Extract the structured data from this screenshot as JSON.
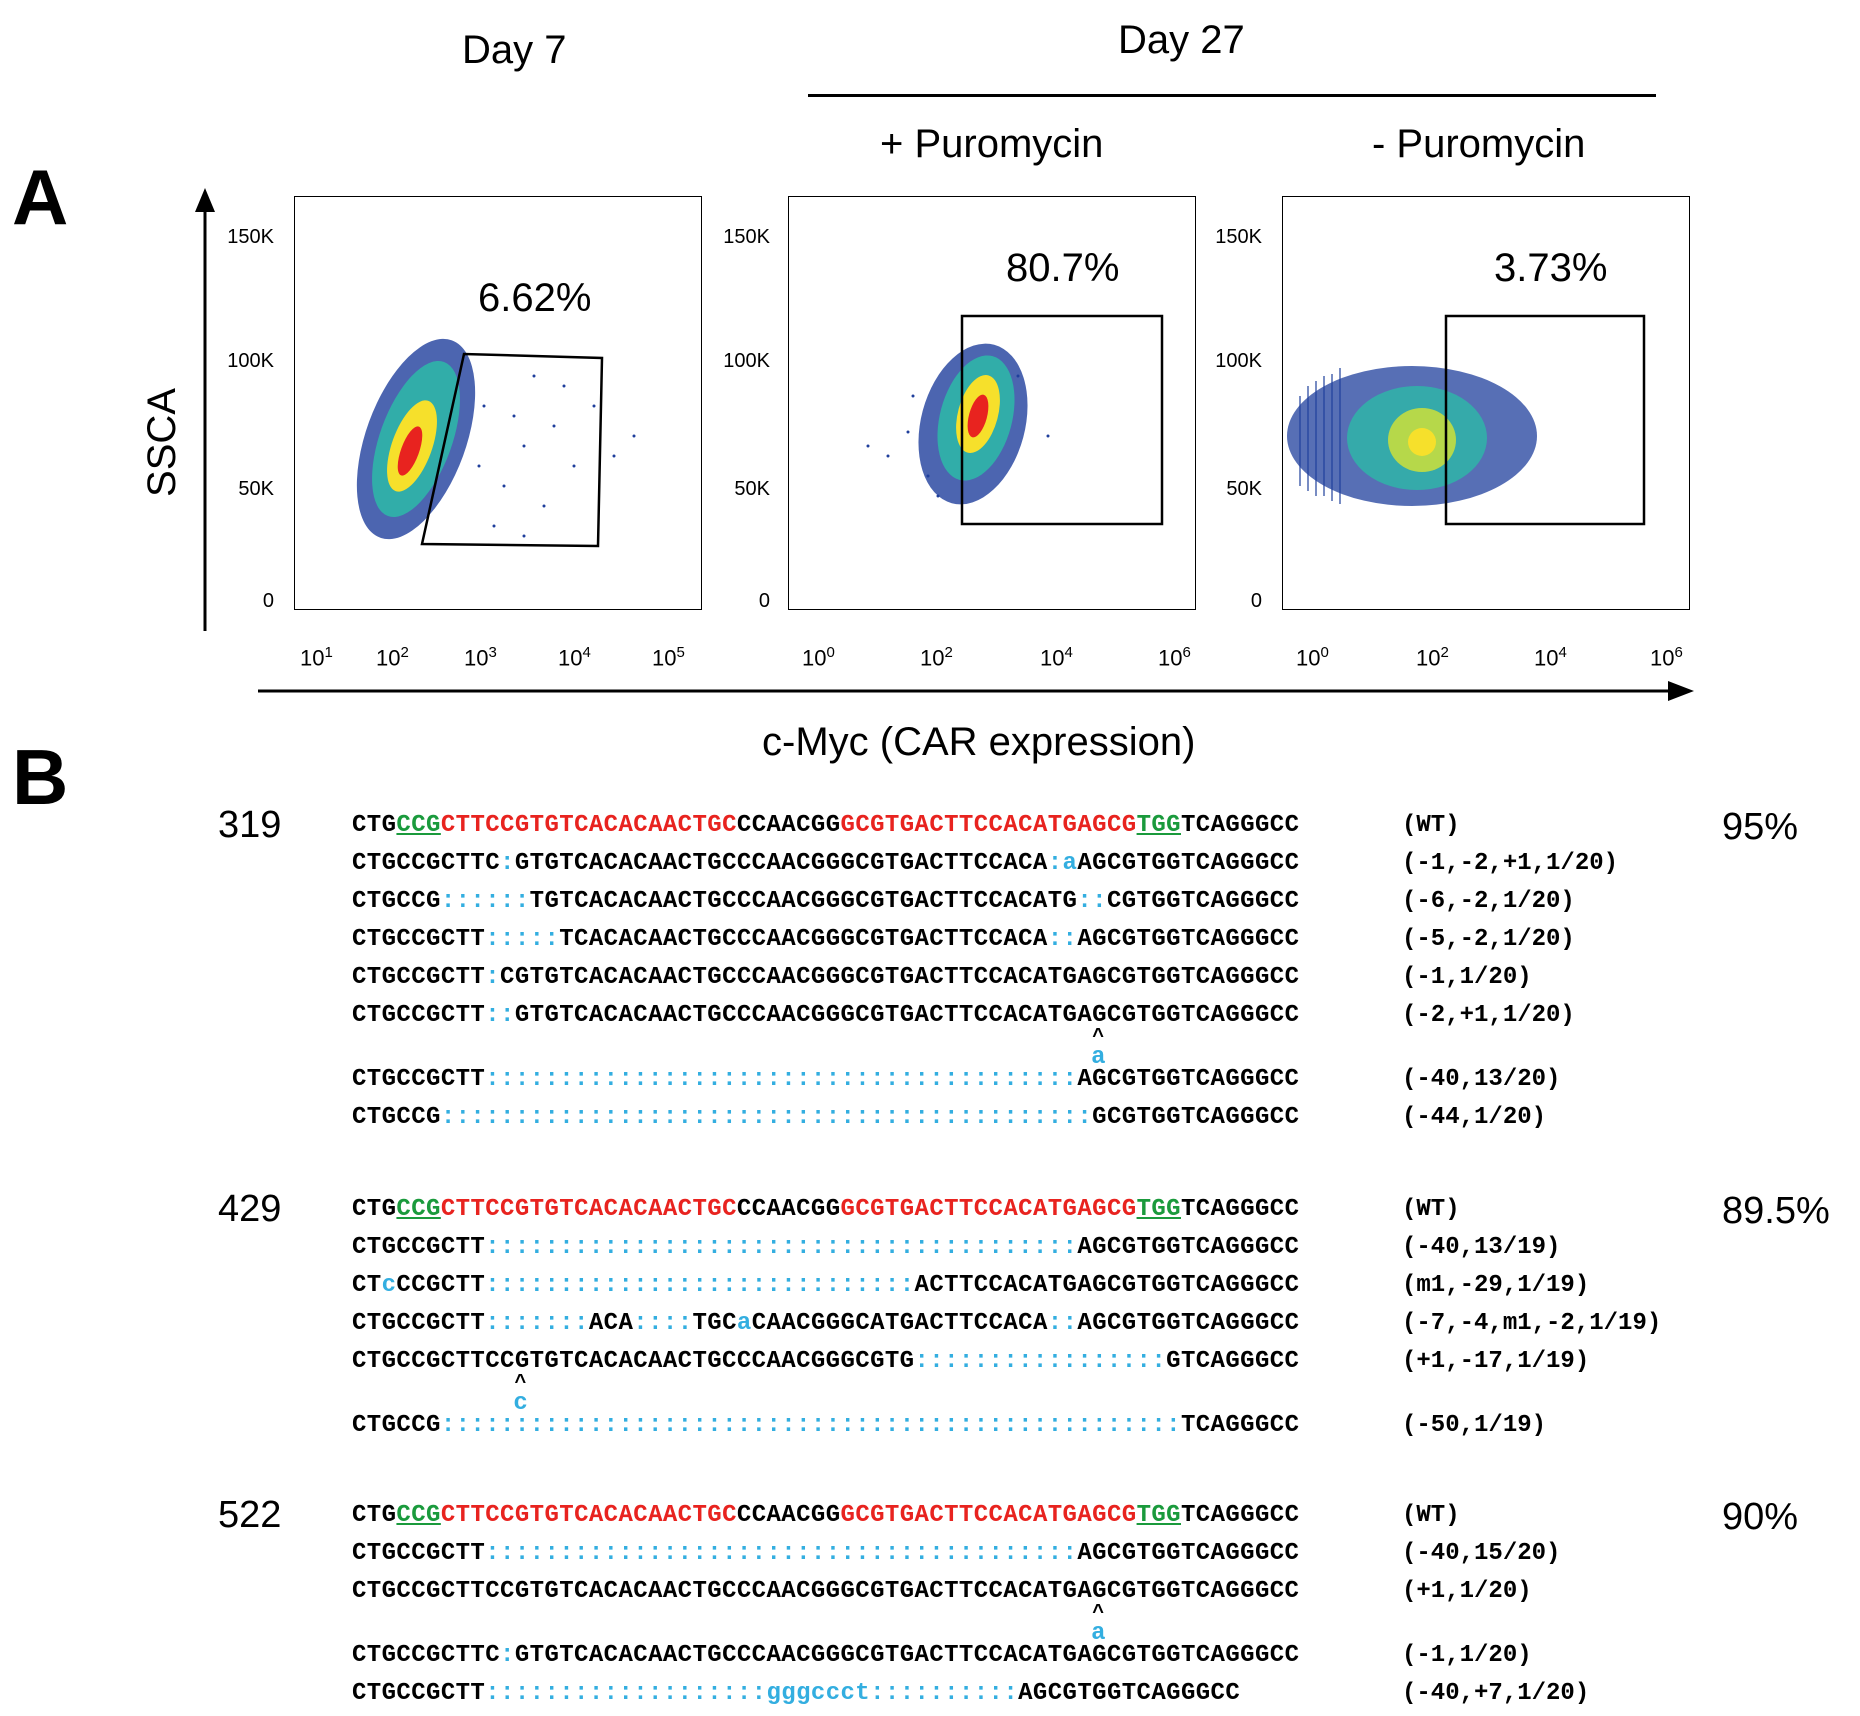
{
  "panel_a": {
    "letter": "A",
    "headers": {
      "day7": "Day 7",
      "day27": "Day 27",
      "plus_puro": "+ Puromycin",
      "minus_puro": "- Puromycin"
    },
    "y_axis_label": "SSCA",
    "x_axis_label": "c-Myc (CAR expression)",
    "y_ticks": [
      "150K",
      "100K",
      "50K",
      "0"
    ],
    "plots": [
      {
        "gate_percent": "6.62%",
        "x_ticks": [
          "10",
          "10",
          "10",
          "10",
          "10"
        ],
        "x_exp": [
          "1",
          "2",
          "3",
          "4",
          "5"
        ]
      },
      {
        "gate_percent": "80.7%",
        "x_ticks": [
          "10",
          "10",
          "10",
          "10"
        ],
        "x_exp": [
          "0",
          "2",
          "4",
          "6"
        ]
      },
      {
        "gate_percent": "3.73%",
        "x_ticks": [
          "10",
          "10",
          "10",
          "10"
        ],
        "x_exp": [
          "0",
          "2",
          "4",
          "6"
        ]
      }
    ],
    "colors": {
      "density_low": "#1f3f9c",
      "density_mid": "#2fb5a8",
      "density_high": "#e8231f",
      "density_peak": "#f6e02b"
    }
  },
  "panel_b": {
    "letter": "B",
    "colors": {
      "spacer": "#e8231f",
      "pam": "#1a9a3c",
      "edit": "#33aee0"
    },
    "samples": [
      {
        "id": "319",
        "percent": "95%",
        "rows": [
          {
            "seq": "CTGCCGCTTCCGTGTCACACAACTGCCCAACGGGCGTGACTTCCACATGAGCGTGGTCAGGGCC",
            "note": "(WT)",
            "wt": true
          },
          {
            "seq": "CTGCCGCTTC:GTGTCACACAACTGCCCAACGGGCGTGACTTCCACA:aAGCGTGGTCAGGGCC",
            "note": "(-1,-2,+1,1/20)"
          },
          {
            "seq": "CTGCCG::::::TGTCACACAACTGCCCAACGGGCGTGACTTCCACATG::CGTGGTCAGGGCC",
            "note": "(-6,-2,1/20)"
          },
          {
            "seq": "CTGCCGCTT:::::TCACACAACTGCCCAACGGGCGTGACTTCCACA::AGCGTGGTCAGGGCC",
            "note": "(-5,-2,1/20)"
          },
          {
            "seq": "CTGCCGCTT:CGTGTCACACAACTGCCCAACGGGCGTGACTTCCACATGAGCGTGGTCAGGGCC",
            "note": "(-1,1/20)"
          },
          {
            "seq": "CTGCCGCTT::GTGTCACACAACTGCCCAACGGGCGTGACTTCCACATGAGCGTGGTCAGGGCC",
            "note": "(-2,+1,1/20)",
            "insert": "a"
          },
          {
            "seq": "CTGCCGCTT::::::::::::::::::::::::::::::::::::::::AGCGTGGTCAGGGCC",
            "note": "(-40,13/20)"
          },
          {
            "seq": "CTGCCG::::::::::::::::::::::::::::::::::::::::::::GCGTGGTCAGGGCC",
            "note": "(-44,1/20)"
          }
        ]
      },
      {
        "id": "429",
        "percent": "89.5%",
        "rows": [
          {
            "seq": "CTGCCGCTTCCGTGTCACACAACTGCCCAACGGGCGTGACTTCCACATGAGCGTGGTCAGGGCC",
            "note": "(WT)",
            "wt": true
          },
          {
            "seq": "CTGCCGCTT::::::::::::::::::::::::::::::::::::::::AGCGTGGTCAGGGCC",
            "note": "(-40,13/19)"
          },
          {
            "seq": "CTcCCGCTT:::::::::::::::::::::::::::::ACTTCCACATGAGCGTGGTCAGGGCC",
            "note": "(m1,-29,1/19)"
          },
          {
            "seq": "CTGCCGCTT:::::::ACA::::TGCaCAACGGGCATGACTTCCACA::AGCGTGGTCAGGGCC",
            "note": "(-7,-4,m1,-2,1/19)"
          },
          {
            "seq": "CTGCCGCTTCCGTGTCACACAACTGCCCAACGGGCGTG:::::::::::::::::GTCAGGGCC",
            "note": "(+1,-17,1/19)",
            "insert": "c"
          },
          {
            "seq": "CTGCCG::::::::::::::::::::::::::::::::::::::::::::::::::TCAGGGCC",
            "note": "(-50,1/19)"
          }
        ]
      },
      {
        "id": "522",
        "percent": "90%",
        "rows": [
          {
            "seq": "CTGCCGCTTCCGTGTCACACAACTGCCCAACGGGCGTGACTTCCACATGAGCGTGGTCAGGGCC",
            "note": "(WT)",
            "wt": true
          },
          {
            "seq": "CTGCCGCTT::::::::::::::::::::::::::::::::::::::::AGCGTGGTCAGGGCC",
            "note": "(-40,15/20)"
          },
          {
            "seq": "CTGCCGCTTCCGTGTCACACAACTGCCCAACGGGCGTGACTTCCACATGAGCGTGGTCAGGGCC",
            "note": "(+1,1/20)",
            "insert": "a"
          },
          {
            "seq": "CTGCCGCTTC:GTGTCACACAACTGCCCAACGGGCGTGACTTCCACATGAGCGTGGTCAGGGCC",
            "note": "(-1,1/20)"
          },
          {
            "seq": "CTGCCGCTT:::::::::::::::::::gggccct::::::::::AGCGTGGTCAGGGCC",
            "note": "(-40,+7,1/20)"
          }
        ]
      }
    ]
  }
}
